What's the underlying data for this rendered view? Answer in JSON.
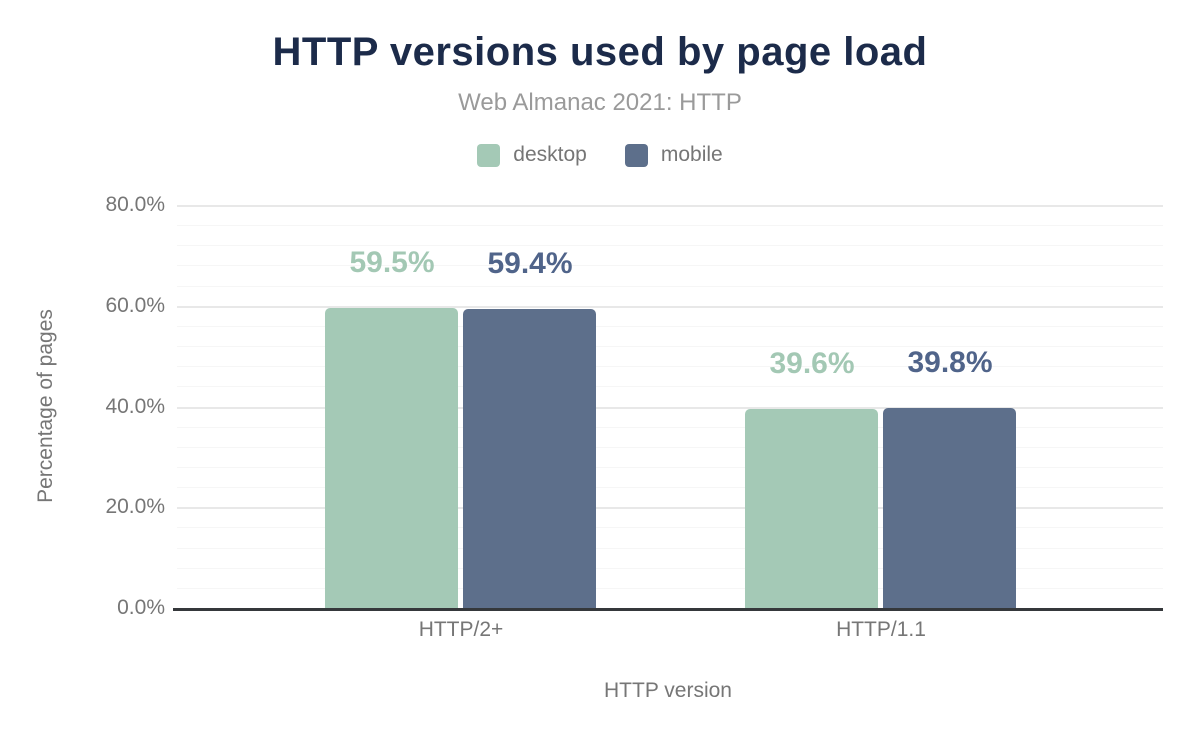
{
  "chart_data": {
    "type": "bar",
    "title": "HTTP versions used by page load",
    "subtitle": "Web Almanac 2021: HTTP",
    "xlabel": "HTTP version",
    "ylabel": "Percentage of pages",
    "categories": [
      "HTTP/2+",
      "HTTP/1.1"
    ],
    "series": [
      {
        "name": "desktop",
        "color": "#a4c9b6",
        "label_color": "#a3c8b4",
        "values": [
          59.5,
          39.6
        ],
        "labels": [
          "59.5%",
          "39.6%"
        ]
      },
      {
        "name": "mobile",
        "color": "#5d6f8b",
        "label_color": "#50648a",
        "values": [
          59.4,
          39.8
        ],
        "labels": [
          "59.4%",
          "39.8%"
        ]
      }
    ],
    "y_axis": {
      "min": 0,
      "max": 80,
      "major_step": 20,
      "minor_step": 4,
      "tick_labels": [
        "0.0%",
        "20.0%",
        "40.0%",
        "60.0%",
        "80.0%"
      ]
    },
    "legend_position": "top",
    "grid": true,
    "colors": {
      "title": "#1c2b4a",
      "subtitle": "#9a9a9a",
      "axis_text": "#767676",
      "major_grid": "#e8e8e8",
      "minor_grid": "#f6f6f6",
      "baseline": "#35383b",
      "background": "#ffffff"
    }
  }
}
